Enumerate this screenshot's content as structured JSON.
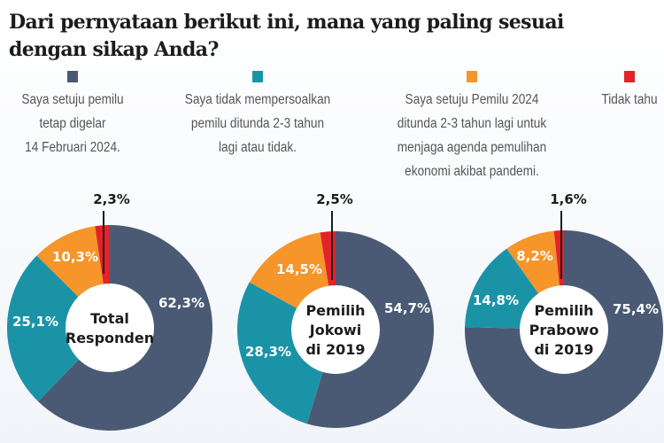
{
  "title": "Dari pernyataan berikut ini, mana yang paling sesuai dengan sikap Anda?",
  "chart_data": {
    "type": "pie",
    "variant": "donut",
    "title": "Dari pernyataan berikut ini, mana yang paling sesuai dengan sikap Anda?",
    "legend_placement": "top",
    "categories": [
      "Saya setuju pemilu tetap digelar 14 Februari 2024.",
      "Saya tidak mempersoalkan pemilu ditunda 2-3 tahun lagi atau tidak.",
      "Saya setuju Pemilu 2024 ditunda 2-3 tahun lagi untuk menjaga agenda pemulihan ekonomi akibat pandemi.",
      "Tidak tahu"
    ],
    "colors": [
      "#4a5a74",
      "#1b93a7",
      "#f5952a",
      "#e3222a"
    ],
    "charts": [
      {
        "name": "Total Responden",
        "values": [
          62.3,
          25.1,
          10.3,
          2.3
        ],
        "labels": [
          "62,3%",
          "25,1%",
          "10,3%",
          "2,3%"
        ]
      },
      {
        "name": "Pemilih Jokowi di 2019",
        "values": [
          54.7,
          28.3,
          14.5,
          2.5
        ],
        "labels": [
          "54,7%",
          "28,3%",
          "14,5%",
          "2,5%"
        ]
      },
      {
        "name": "Pemilih Prabowo di 2019",
        "values": [
          75.4,
          14.8,
          8.2,
          1.6
        ],
        "labels": [
          "75,4%",
          "14,8%",
          "8,2%",
          "1,6%"
        ]
      }
    ]
  },
  "legend": [
    {
      "text": "Saya setuju pemilu\ntetap digelar\n14 Februari 2024.",
      "color": "#4a5a74"
    },
    {
      "text": "Saya tidak mempersoalkan\npemilu ditunda 2-3 tahun\nlagi atau tidak.",
      "color": "#1b93a7"
    },
    {
      "text": "Saya setuju Pemilu 2024\nditunda 2-3 tahun lagi untuk\nmenjaga agenda pemulihan\nekonomi akibat pandemi.",
      "color": "#f5952a"
    },
    {
      "text": "Tidak tahu",
      "color": "#e3222a"
    }
  ],
  "center_labels": [
    [
      "Total",
      "Responden"
    ],
    [
      "Pemilih",
      "Jokowi",
      "di 2019"
    ],
    [
      "Pemilih",
      "Prabowo",
      "di 2019"
    ]
  ]
}
